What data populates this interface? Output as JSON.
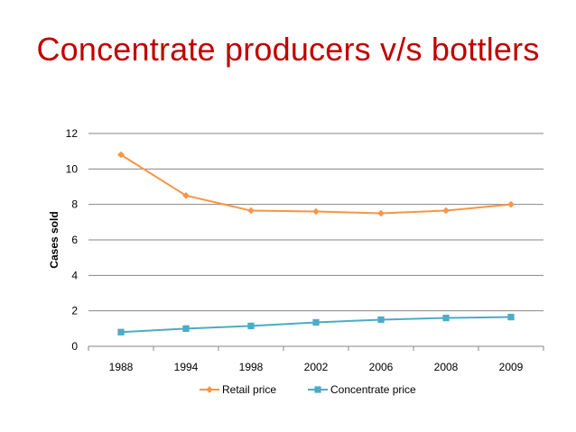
{
  "chart_data": {
    "type": "line",
    "title": "Concentrate producers v/s bottlers",
    "xlabel": "",
    "ylabel": "Cases sold",
    "categories": [
      "1988",
      "1994",
      "1998",
      "2002",
      "2006",
      "2008",
      "2009"
    ],
    "ylim": [
      0,
      12
    ],
    "yticks": [
      0,
      2,
      4,
      6,
      8,
      10,
      12
    ],
    "grid": true,
    "legend_position": "bottom",
    "series": [
      {
        "name": "Retail price",
        "color": "#f79646",
        "marker": "diamond",
        "values": [
          10.8,
          8.5,
          7.65,
          7.6,
          7.5,
          7.65,
          8.0
        ]
      },
      {
        "name": "Concentrate price",
        "color": "#4bacc6",
        "marker": "square",
        "values": [
          0.8,
          1.0,
          1.15,
          1.35,
          1.5,
          1.6,
          1.65
        ]
      }
    ]
  }
}
